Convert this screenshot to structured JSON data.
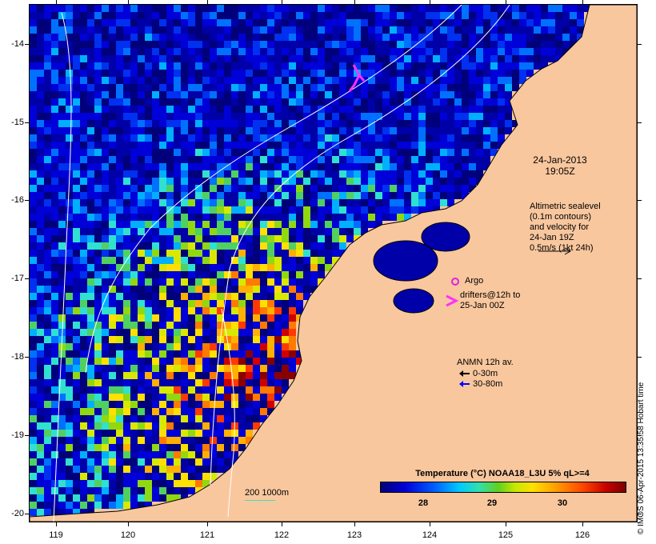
{
  "map": {
    "latitude_ticks": [
      "-14",
      "-15",
      "-16",
      "-17",
      "-18",
      "-19",
      "-20"
    ],
    "longitude_ticks": [
      "119",
      "120",
      "121",
      "122",
      "123",
      "124",
      "125",
      "126"
    ]
  },
  "annotations": {
    "date_line1": "24-Jan-2013",
    "date_line2": "19:05Z",
    "sealevel_lines": [
      "Altimetric sealevel",
      "(0.1m contours)",
      "and velocity for",
      "24-Jan 19Z",
      "0.5m/s (1kt 24h)"
    ],
    "argo_label": "Argo",
    "drifters_line1": "drifters@12h to",
    "drifters_line2": "25-Jan 00Z",
    "anmn_title": "ANMN 12h av.",
    "anmn_shallow": "0-30m",
    "anmn_deep": "30-80m",
    "isobath_label": "200  1000m"
  },
  "colorbar": {
    "title": "Temperature (°C) NOAA18_L3U 5% qL>=4",
    "tick_labels": [
      "28",
      "29",
      "30"
    ]
  },
  "footer": {
    "stamp": "© IMOS 06-Apr-2015 13:35:58 Hobart time"
  },
  "colors": {
    "land": "#f9c79e",
    "argo_marker": "#e020e0",
    "drifter_arrow": "#ff30ff",
    "anmn_shallow_arrow": "#000000",
    "anmn_deep_arrow": "#0000ff",
    "isobath_line": "#ffffff",
    "scale_line": "#40e0c0"
  },
  "icons": {
    "argo": "circle-outline-icon",
    "drifter": "chevron-arrow-icon",
    "velocity": "arrow-right-icon"
  }
}
